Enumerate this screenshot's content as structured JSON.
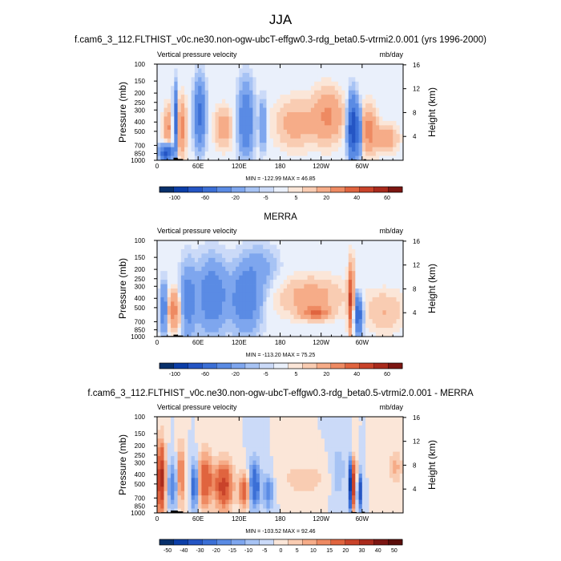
{
  "figure": {
    "title": "JJA",
    "colors": {
      "axis": "#000000",
      "background": "#ffffff"
    }
  },
  "chart_data": [
    {
      "type": "heatmap",
      "id": "model",
      "title": "f.cam6_3_112.FLTHIST_v0c.ne30.non-ogw-ubcT-effgw0.3-rdg_beta0.5-vtrmi2.0.001 (yrs 1996-2000)",
      "left_label": "Vertical pressure velocity",
      "right_label": "mb/day",
      "ylabel": "Pressure (mb)",
      "y2label": "Height (km)",
      "x_ticks": [
        "0",
        "60E",
        "120E",
        "180",
        "120W",
        "60W"
      ],
      "x_tick_values": [
        0,
        60,
        120,
        180,
        240,
        300
      ],
      "xlim": [
        0,
        360
      ],
      "y_ticks": [
        "100",
        "150",
        "200",
        "250",
        "300",
        "400",
        "500",
        "700",
        "850",
        "1000"
      ],
      "y_tick_values": [
        100,
        150,
        200,
        250,
        300,
        400,
        500,
        700,
        850,
        1000
      ],
      "ylim": [
        100,
        1000
      ],
      "y2_ticks": [
        "16",
        "12",
        "8",
        "4"
      ],
      "stats_text": "MIN = -122.99  MAX = 46.85",
      "min": -122.99,
      "max": 46.85,
      "colorbar_labels": [
        "-100",
        "-60",
        "-20",
        "-5",
        "5",
        "20",
        "40",
        "60"
      ],
      "colorbar_levels": [
        -120,
        -100,
        -80,
        -60,
        -40,
        -20,
        -10,
        -5,
        -2,
        2,
        5,
        10,
        20,
        30,
        40,
        50,
        60
      ],
      "palette": [
        "#08306b",
        "#0b3ea8",
        "#2455c4",
        "#3b6fd6",
        "#5a8be4",
        "#7ea6ee",
        "#a7c3f4",
        "#cbdaf8",
        "#eaf0fb",
        "#fbe6d8",
        "#f9ccb2",
        "#f6ac88",
        "#ee8a62",
        "#e0643f",
        "#c9432a",
        "#a92a1c",
        "#7c1612"
      ],
      "bands": [
        {
          "lon": [
            5,
            22
          ],
          "p": [
            700,
            1000
          ],
          "v": -70
        },
        {
          "lon": [
            10,
            22
          ],
          "p": [
            300,
            700
          ],
          "v": 22
        },
        {
          "lon": [
            24,
            30
          ],
          "p": [
            200,
            700
          ],
          "v": -60
        },
        {
          "lon": [
            30,
            42
          ],
          "p": [
            250,
            850
          ],
          "v": 25
        },
        {
          "lon": [
            55,
            70
          ],
          "p": [
            160,
            650
          ],
          "v": -45
        },
        {
          "lon": [
            85,
            110
          ],
          "p": [
            300,
            700
          ],
          "v": 15
        },
        {
          "lon": [
            120,
            140
          ],
          "p": [
            180,
            800
          ],
          "v": -40
        },
        {
          "lon": [
            150,
            160
          ],
          "p": [
            250,
            700
          ],
          "v": -25
        },
        {
          "lon": [
            175,
            230
          ],
          "p": [
            250,
            700
          ],
          "v": 14
        },
        {
          "lon": [
            230,
            270
          ],
          "p": [
            200,
            600
          ],
          "v": 22
        },
        {
          "lon": [
            280,
            292
          ],
          "p": [
            250,
            900
          ],
          "v": -85
        },
        {
          "lon": [
            292,
            298
          ],
          "p": [
            300,
            850
          ],
          "v": -50
        },
        {
          "lon": [
            300,
            320
          ],
          "p": [
            300,
            800
          ],
          "v": 25
        },
        {
          "lon": [
            320,
            350
          ],
          "p": [
            450,
            800
          ],
          "v": 18
        }
      ],
      "topography": [
        {
          "lon": [
            6,
            24
          ],
          "p": 985
        },
        {
          "lon": [
            24,
            30
          ],
          "p": 940
        },
        {
          "lon": [
            30,
            38
          ],
          "p": 970
        },
        {
          "lon": [
            284,
            292
          ],
          "p": 985
        },
        {
          "lon": [
            302,
            306
          ],
          "p": 975
        }
      ]
    },
    {
      "type": "heatmap",
      "id": "obs",
      "title": "MERRA",
      "left_label": "Vertical pressure velocity",
      "right_label": "mb/day",
      "ylabel": "Pressure (mb)",
      "y2label": "Height (km)",
      "x_ticks": [
        "0",
        "60E",
        "120E",
        "180",
        "120W",
        "60W"
      ],
      "x_tick_values": [
        0,
        60,
        120,
        180,
        240,
        300
      ],
      "xlim": [
        0,
        360
      ],
      "y_ticks": [
        "100",
        "150",
        "200",
        "250",
        "300",
        "400",
        "500",
        "700",
        "850",
        "1000"
      ],
      "y_tick_values": [
        100,
        150,
        200,
        250,
        300,
        400,
        500,
        700,
        850,
        1000
      ],
      "ylim": [
        100,
        1000
      ],
      "y2_ticks": [
        "16",
        "12",
        "8",
        "4"
      ],
      "stats_text": "MIN = -113.20  MAX = 75.25",
      "min": -113.2,
      "max": 75.25,
      "colorbar_labels": [
        "-100",
        "-60",
        "-20",
        "-5",
        "5",
        "20",
        "40",
        "60"
      ],
      "colorbar_levels": [
        -120,
        -100,
        -80,
        -60,
        -40,
        -20,
        -10,
        -5,
        -2,
        2,
        5,
        10,
        20,
        30,
        40,
        50,
        60
      ],
      "palette": [
        "#08306b",
        "#0b3ea8",
        "#2455c4",
        "#3b6fd6",
        "#5a8be4",
        "#7ea6ee",
        "#a7c3f4",
        "#cbdaf8",
        "#eaf0fb",
        "#fbe6d8",
        "#f9ccb2",
        "#f6ac88",
        "#ee8a62",
        "#e0643f",
        "#c9432a",
        "#a92a1c",
        "#7c1612"
      ],
      "bands": [
        {
          "lon": [
            5,
            15
          ],
          "p": [
            300,
            900
          ],
          "v": -35
        },
        {
          "lon": [
            15,
            35
          ],
          "p": [
            350,
            800
          ],
          "v": 25
        },
        {
          "lon": [
            35,
            55
          ],
          "p": [
            200,
            900
          ],
          "v": -30
        },
        {
          "lon": [
            60,
            100
          ],
          "p": [
            180,
            800
          ],
          "v": -35
        },
        {
          "lon": [
            110,
            150
          ],
          "p": [
            200,
            800
          ],
          "v": -35
        },
        {
          "lon": [
            130,
            175
          ],
          "p": [
            120,
            300
          ],
          "v": -12
        },
        {
          "lon": [
            180,
            270
          ],
          "p": [
            250,
            600
          ],
          "v": 14
        },
        {
          "lon": [
            215,
            250
          ],
          "p": [
            500,
            650
          ],
          "v": 30
        },
        {
          "lon": [
            280,
            288
          ],
          "p": [
            200,
            900
          ],
          "v": 45
        },
        {
          "lon": [
            288,
            300
          ],
          "p": [
            400,
            900
          ],
          "v": -60
        },
        {
          "lon": [
            305,
            360
          ],
          "p": [
            350,
            850
          ],
          "v": 10
        }
      ],
      "topography": [
        {
          "lon": [
            6,
            24
          ],
          "p": 985
        },
        {
          "lon": [
            24,
            30
          ],
          "p": 955
        },
        {
          "lon": [
            30,
            38
          ],
          "p": 975
        },
        {
          "lon": [
            284,
            292
          ],
          "p": 988
        }
      ]
    },
    {
      "type": "heatmap",
      "id": "diff",
      "title": "f.cam6_3_112.FLTHIST_v0c.ne30.non-ogw-ubcT-effgw0.3-rdg_beta0.5-vtrmi2.0.001 - MERRA",
      "left_label": "Vertical pressure velocity",
      "right_label": "mb/day",
      "ylabel": "Pressure (mb)",
      "y2label": "Height (km)",
      "x_ticks": [
        "0",
        "60E",
        "120E",
        "180",
        "120W",
        "60W"
      ],
      "x_tick_values": [
        0,
        60,
        120,
        180,
        240,
        300
      ],
      "xlim": [
        0,
        360
      ],
      "y_ticks": [
        "100",
        "150",
        "200",
        "250",
        "300",
        "400",
        "500",
        "700",
        "850",
        "1000"
      ],
      "y_tick_values": [
        100,
        150,
        200,
        250,
        300,
        400,
        500,
        700,
        850,
        1000
      ],
      "ylim": [
        100,
        1000
      ],
      "y2_ticks": [
        "16",
        "12",
        "8",
        "4"
      ],
      "stats_text": "MIN = -103.52  MAX = 92.46",
      "min": -103.52,
      "max": 92.46,
      "colorbar_labels": [
        "-50",
        "-40",
        "-30",
        "-20",
        "-15",
        "-10",
        "-5",
        "0",
        "5",
        "10",
        "15",
        "20",
        "30",
        "40",
        "50"
      ],
      "colorbar_levels": [
        -60,
        -50,
        -40,
        -30,
        -20,
        -15,
        -10,
        -5,
        0,
        5,
        10,
        15,
        20,
        30,
        40,
        50,
        60
      ],
      "palette": [
        "#08306b",
        "#0b3ea8",
        "#2455c4",
        "#3b6fd6",
        "#5a8be4",
        "#7ea6ee",
        "#a7c3f4",
        "#cbdaf8",
        "#fbe6d8",
        "#f9ccb2",
        "#f6ac88",
        "#ee8a62",
        "#e0643f",
        "#c9432a",
        "#a92a1c",
        "#7c1612",
        "#5a0d0a"
      ],
      "bands": [
        {
          "lon": [
            0,
            12
          ],
          "p": [
            200,
            1000
          ],
          "v": 45
        },
        {
          "lon": [
            15,
            30
          ],
          "p": [
            300,
            900
          ],
          "v": -20
        },
        {
          "lon": [
            30,
            40
          ],
          "p": [
            200,
            850
          ],
          "v": 25
        },
        {
          "lon": [
            50,
            60
          ],
          "p": [
            300,
            900
          ],
          "v": -30
        },
        {
          "lon": [
            60,
            80
          ],
          "p": [
            250,
            850
          ],
          "v": 30
        },
        {
          "lon": [
            85,
            110
          ],
          "p": [
            300,
            900
          ],
          "v": 35
        },
        {
          "lon": [
            120,
            135
          ],
          "p": [
            400,
            900
          ],
          "v": 28
        },
        {
          "lon": [
            135,
            150
          ],
          "p": [
            300,
            900
          ],
          "v": -30
        },
        {
          "lon": [
            155,
            170
          ],
          "p": [
            400,
            900
          ],
          "v": -20
        },
        {
          "lon": [
            180,
            250
          ],
          "p": [
            300,
            650
          ],
          "v": 8
        },
        {
          "lon": [
            255,
            275
          ],
          "p": [
            200,
            700
          ],
          "v": -10
        },
        {
          "lon": [
            280,
            286
          ],
          "p": [
            300,
            900
          ],
          "v": -45
        },
        {
          "lon": [
            286,
            292
          ],
          "p": [
            300,
            900
          ],
          "v": 55
        },
        {
          "lon": [
            292,
            300
          ],
          "p": [
            400,
            900
          ],
          "v": -40
        },
        {
          "lon": [
            340,
            358
          ],
          "p": [
            220,
            500
          ],
          "v": 12
        }
      ],
      "topography": [
        {
          "lon": [
            6,
            20
          ],
          "p": 985
        },
        {
          "lon": [
            20,
            30
          ],
          "p": 945
        },
        {
          "lon": [
            30,
            38
          ],
          "p": 965
        },
        {
          "lon": [
            284,
            292
          ],
          "p": 980
        },
        {
          "lon": [
            300,
            304
          ],
          "p": 972
        }
      ]
    }
  ]
}
